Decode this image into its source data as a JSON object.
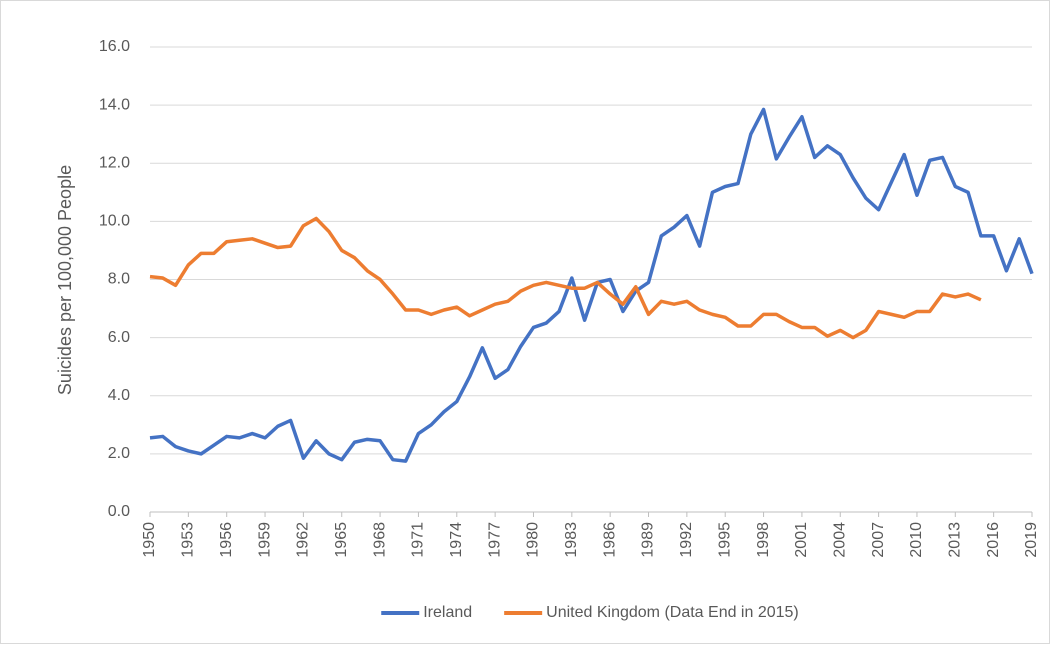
{
  "chart_data": {
    "type": "line",
    "y_label": "Suicides per 100,000 People",
    "x": [
      1950,
      1951,
      1952,
      1953,
      1954,
      1955,
      1956,
      1957,
      1958,
      1959,
      1960,
      1961,
      1962,
      1963,
      1964,
      1965,
      1966,
      1967,
      1968,
      1969,
      1970,
      1971,
      1972,
      1973,
      1974,
      1975,
      1976,
      1977,
      1978,
      1979,
      1980,
      1981,
      1982,
      1983,
      1984,
      1985,
      1986,
      1987,
      1988,
      1989,
      1990,
      1991,
      1992,
      1993,
      1994,
      1995,
      1996,
      1997,
      1998,
      1999,
      2000,
      2001,
      2002,
      2003,
      2004,
      2005,
      2006,
      2007,
      2008,
      2009,
      2010,
      2011,
      2012,
      2013,
      2014,
      2015,
      2016,
      2017,
      2018,
      2019
    ],
    "series": [
      {
        "name": "Ireland",
        "color": "#4472c4",
        "values": [
          2.55,
          2.6,
          2.25,
          2.1,
          2.0,
          2.3,
          2.6,
          2.55,
          2.7,
          2.55,
          2.95,
          3.15,
          1.85,
          2.45,
          2.0,
          1.8,
          2.4,
          2.5,
          2.45,
          1.8,
          1.75,
          2.7,
          3.0,
          3.45,
          3.8,
          4.65,
          5.65,
          4.6,
          4.9,
          5.7,
          6.35,
          6.5,
          6.9,
          8.05,
          6.6,
          7.9,
          8.0,
          6.9,
          7.6,
          7.9,
          9.5,
          9.8,
          10.2,
          9.15,
          11.0,
          11.2,
          11.3,
          13.0,
          13.85,
          12.15,
          12.9,
          13.6,
          12.2,
          12.6,
          12.3,
          11.5,
          10.8,
          10.4,
          11.35,
          12.3,
          10.9,
          12.1,
          12.2,
          11.2,
          11.0,
          9.5,
          9.5,
          8.3,
          9.4,
          8.2
        ]
      },
      {
        "name": "United Kingdom (Data End in 2015)",
        "color": "#ed7d31",
        "values": [
          8.1,
          8.05,
          7.8,
          8.5,
          8.9,
          8.9,
          9.3,
          9.35,
          9.4,
          9.25,
          9.1,
          9.15,
          9.85,
          10.1,
          9.65,
          9.0,
          8.75,
          8.3,
          8.0,
          7.5,
          6.95,
          6.95,
          6.8,
          6.95,
          7.05,
          6.75,
          6.95,
          7.15,
          7.25,
          7.6,
          7.8,
          7.9,
          7.8,
          7.7,
          7.7,
          7.9,
          7.5,
          7.15,
          7.75,
          6.8,
          7.25,
          7.15,
          7.25,
          6.95,
          6.8,
          6.7,
          6.4,
          6.4,
          6.8,
          6.8,
          6.55,
          6.35,
          6.35,
          6.05,
          6.25,
          6.0,
          6.25,
          6.9,
          6.8,
          6.7,
          6.9,
          6.9,
          7.5,
          7.4,
          7.5,
          7.3,
          null,
          null,
          null,
          null
        ]
      }
    ],
    "xlim": [
      1950,
      2019
    ],
    "xticks": [
      1950,
      1953,
      1956,
      1959,
      1962,
      1965,
      1968,
      1971,
      1974,
      1977,
      1980,
      1983,
      1986,
      1989,
      1992,
      1995,
      1998,
      2001,
      2004,
      2007,
      2010,
      2013,
      2016,
      2019
    ],
    "ylim": [
      0,
      16
    ],
    "yticks": [
      {
        "value": 0,
        "label": "0.0"
      },
      {
        "value": 2,
        "label": "2.0"
      },
      {
        "value": 4,
        "label": "4.0"
      },
      {
        "value": 6,
        "label": "6.0"
      },
      {
        "value": 8,
        "label": "8.0"
      },
      {
        "value": 10,
        "label": "10.0"
      },
      {
        "value": 12,
        "label": "12.0"
      },
      {
        "value": 14,
        "label": "14.0"
      },
      {
        "value": 16,
        "label": "16.0"
      }
    ],
    "grid": true,
    "legend": "bottom"
  }
}
